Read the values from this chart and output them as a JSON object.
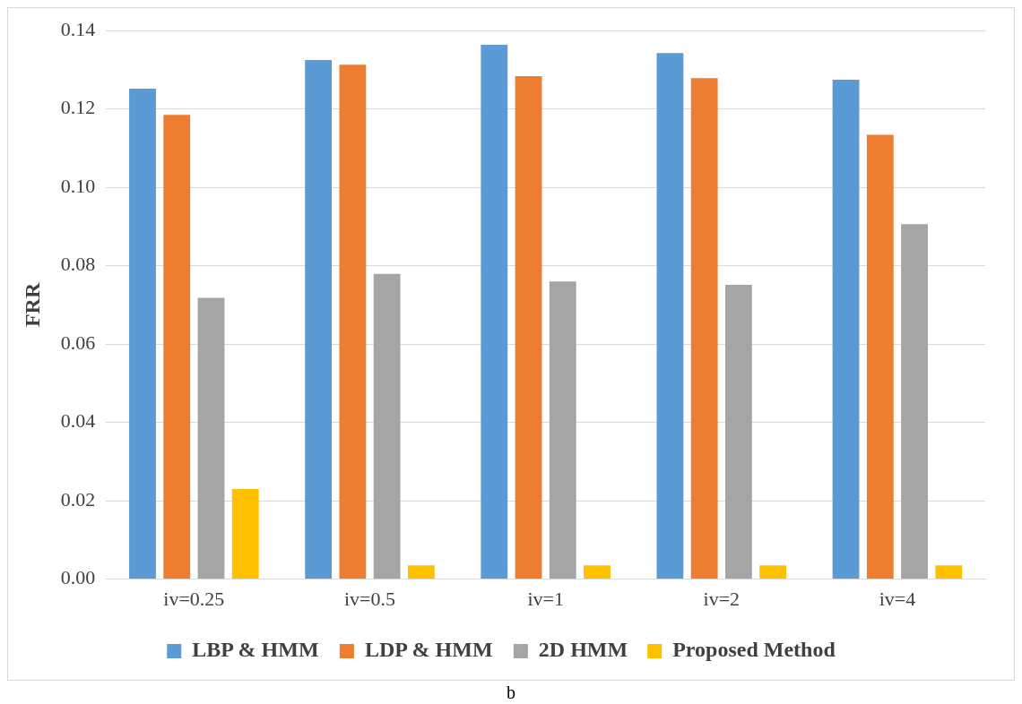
{
  "chart_data": {
    "type": "bar",
    "ylabel": "FRR",
    "categories": [
      "iv=0.25",
      "iv=0.5",
      "iv=1",
      "iv=2",
      "iv=4"
    ],
    "series": [
      {
        "name": "LBP & HMM",
        "color": "#5b9bd5",
        "values": [
          0.1252,
          0.1325,
          0.1364,
          0.1343,
          0.1275
        ]
      },
      {
        "name": "LDP & HMM",
        "color": "#ed7d31",
        "values": [
          0.1185,
          0.1313,
          0.1284,
          0.1279,
          0.1134
        ]
      },
      {
        "name": "2D HMM",
        "color": "#a5a5a5",
        "values": [
          0.0718,
          0.0779,
          0.076,
          0.0751,
          0.0906
        ]
      },
      {
        "name": "Proposed Method",
        "color": "#ffc000",
        "values": [
          0.023,
          0.0035,
          0.0035,
          0.0035,
          0.0035
        ]
      }
    ],
    "ylim": [
      0,
      0.14
    ],
    "yticks": [
      {
        "value": 0,
        "label": "0.00"
      },
      {
        "value": 0.02,
        "label": "0.02"
      },
      {
        "value": 0.04,
        "label": "0.04"
      },
      {
        "value": 0.06,
        "label": "0.06"
      },
      {
        "value": 0.08,
        "label": "0.08"
      },
      {
        "value": 0.1,
        "label": "0.10"
      },
      {
        "value": 0.12,
        "label": "0.12"
      },
      {
        "value": 0.14,
        "label": "0.14"
      }
    ],
    "grid": "y",
    "legend": "bottom",
    "annotations": [
      "b"
    ]
  }
}
